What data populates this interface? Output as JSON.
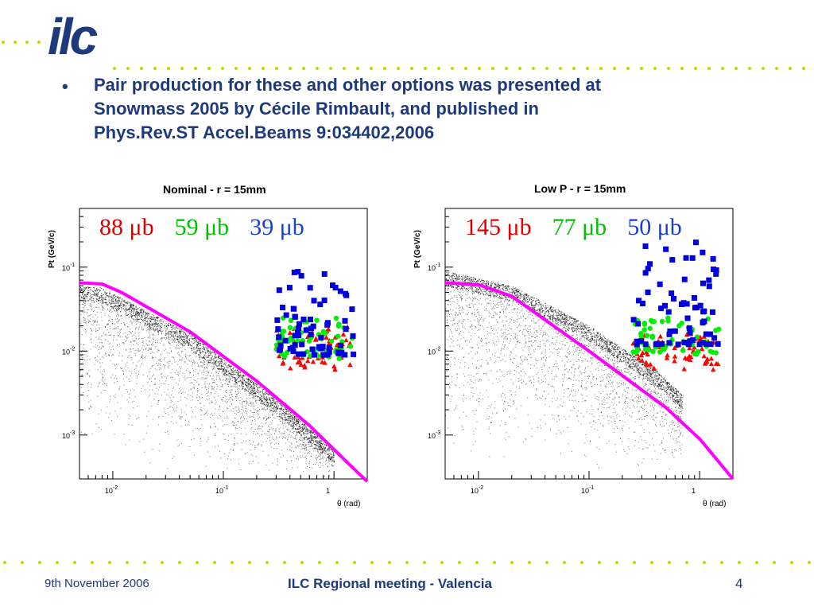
{
  "header": {
    "logo_text": "ilc",
    "colors": {
      "brand_blue": "#1f3a7a",
      "dot_green": "#c8d400"
    }
  },
  "bullet": {
    "symbol": "•",
    "lines": [
      "Pair production for these and other options was presented at",
      "Snowmass 2005 by Cécile Rimbault, and published in",
      "Phys.Rev.ST Accel.Beams 9:034402,2006"
    ]
  },
  "footer": {
    "date": "9th November 2006",
    "title": "ILC Regional meeting - Valencia",
    "page": "4"
  },
  "chart_data": [
    {
      "type": "scatter",
      "title": "Nominal - r = 15mm",
      "xlabel": "θ (rad)",
      "ylabel": "Pt (GeV/c)",
      "xscale": "log",
      "yscale": "log",
      "xlim": [
        0.005,
        2.0
      ],
      "ylim": [
        0.0003,
        0.5
      ],
      "xticks": [
        {
          "value": 0.01,
          "label": "10",
          "exp": "-2"
        },
        {
          "value": 0.1,
          "label": "10",
          "exp": "-1"
        },
        {
          "value": 1,
          "label": "1",
          "exp": ""
        }
      ],
      "yticks": [
        {
          "value": 0.1,
          "label": "10",
          "exp": "-1"
        },
        {
          "value": 0.01,
          "label": "10",
          "exp": "-2"
        },
        {
          "value": 0.001,
          "label": "10",
          "exp": "-3"
        }
      ],
      "cross_sections": [
        {
          "text": "88 μb",
          "color": "#e00000"
        },
        {
          "text": "59 μb",
          "color": "#00c000"
        },
        {
          "text": "39 μb",
          "color": "#1a3fd0"
        }
      ],
      "curve": {
        "color": "#ff00ff",
        "points": [
          [
            0.005,
            0.065
          ],
          [
            0.008,
            0.063
          ],
          [
            0.012,
            0.05
          ],
          [
            0.05,
            0.017
          ],
          [
            0.2,
            0.0044
          ],
          [
            0.6,
            0.0013
          ],
          [
            1.5,
            0.0004
          ],
          [
            2.0,
            0.00028
          ]
        ]
      },
      "background_cloud": {
        "color": "#000000",
        "x_range": [
          0.005,
          1.0
        ],
        "upper_edge": [
          [
            0.005,
            0.06
          ],
          [
            0.008,
            0.057
          ],
          [
            0.05,
            0.016
          ],
          [
            0.3,
            0.0027
          ],
          [
            0.6,
            0.0012
          ],
          [
            1.0,
            0.0007
          ]
        ],
        "lower_pt": 0.0003
      },
      "markers": [
        {
          "name": "red",
          "shape": "triangle",
          "color": "#ff0000",
          "x_range": [
            0.3,
            1.4
          ],
          "y_range": [
            0.006,
            0.02
          ]
        },
        {
          "name": "green",
          "shape": "circle",
          "color": "#00ee00",
          "x_range": [
            0.3,
            1.5
          ],
          "y_range": [
            0.008,
            0.025
          ]
        },
        {
          "name": "blue",
          "shape": "square",
          "color": "#0000dd",
          "x_range": [
            0.3,
            1.5
          ],
          "y_range": [
            0.009,
            0.09
          ]
        }
      ]
    },
    {
      "type": "scatter",
      "title": "Low P - r = 15mm",
      "xlabel": "θ (rad)",
      "ylabel": "Pt (GeV/c)",
      "xscale": "log",
      "yscale": "log",
      "xlim": [
        0.005,
        2.0
      ],
      "ylim": [
        0.0003,
        0.5
      ],
      "xticks": [
        {
          "value": 0.01,
          "label": "10",
          "exp": "-2"
        },
        {
          "value": 0.1,
          "label": "10",
          "exp": "-1"
        },
        {
          "value": 1,
          "label": "1",
          "exp": ""
        }
      ],
      "yticks": [
        {
          "value": 0.1,
          "label": "10",
          "exp": "-1"
        },
        {
          "value": 0.01,
          "label": "10",
          "exp": "-2"
        },
        {
          "value": 0.001,
          "label": "10",
          "exp": "-3"
        }
      ],
      "cross_sections": [
        {
          "text": "145 μb",
          "color": "#e00000"
        },
        {
          "text": "77 μb",
          "color": "#00c000"
        },
        {
          "text": "50 μb",
          "color": "#1a3fd0"
        }
      ],
      "curve": {
        "color": "#ff00ff",
        "points": [
          [
            0.005,
            0.065
          ],
          [
            0.01,
            0.062
          ],
          [
            0.02,
            0.045
          ],
          [
            0.1,
            0.01
          ],
          [
            0.5,
            0.0021
          ],
          [
            1.0,
            0.0009
          ],
          [
            2.0,
            0.0003
          ]
        ]
      },
      "background_cloud": {
        "color": "#000000",
        "x_range": [
          0.005,
          0.7
        ],
        "upper_edge": [
          [
            0.005,
            0.09
          ],
          [
            0.02,
            0.06
          ],
          [
            0.1,
            0.02
          ],
          [
            0.4,
            0.006
          ],
          [
            0.7,
            0.003
          ]
        ],
        "lower_pt": 0.0003
      },
      "markers": [
        {
          "name": "red",
          "shape": "triangle",
          "color": "#ff0000",
          "x_range": [
            0.25,
            1.5
          ],
          "y_range": [
            0.006,
            0.016
          ]
        },
        {
          "name": "green",
          "shape": "circle",
          "color": "#00ee00",
          "x_range": [
            0.25,
            1.5
          ],
          "y_range": [
            0.009,
            0.025
          ]
        },
        {
          "name": "blue",
          "shape": "square",
          "color": "#0000dd",
          "x_range": [
            0.25,
            1.5
          ],
          "y_range": [
            0.012,
            0.2
          ]
        }
      ]
    }
  ]
}
